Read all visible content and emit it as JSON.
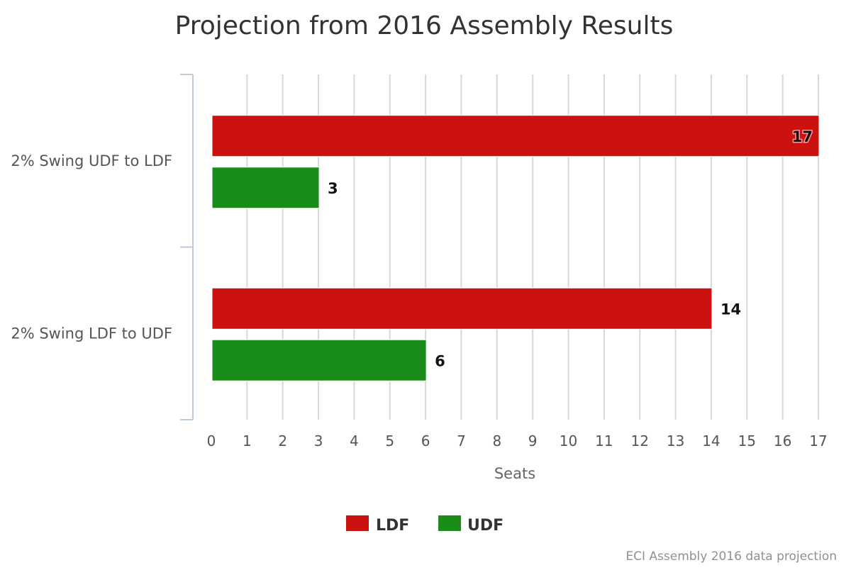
{
  "chart_data": {
    "type": "bar",
    "orientation": "horizontal",
    "title": "Projection from 2016 Assembly Results",
    "xlabel": "Seats",
    "ylabel": "",
    "categories": [
      "2% Swing UDF to LDF",
      "2% Swing LDF to UDF"
    ],
    "series": [
      {
        "name": "LDF",
        "color": "#cc1111",
        "values": [
          17,
          14
        ]
      },
      {
        "name": "UDF",
        "color": "#1a8c1a",
        "values": [
          3,
          6
        ]
      }
    ],
    "xlim": [
      0,
      17
    ],
    "x_ticks": [
      0,
      1,
      2,
      3,
      4,
      5,
      6,
      7,
      8,
      9,
      10,
      11,
      12,
      13,
      14,
      15,
      16,
      17
    ],
    "grid": true,
    "data_labels": true,
    "legend": {
      "position": "bottom-center"
    },
    "credits": "ECI Assembly 2016 data projection"
  }
}
